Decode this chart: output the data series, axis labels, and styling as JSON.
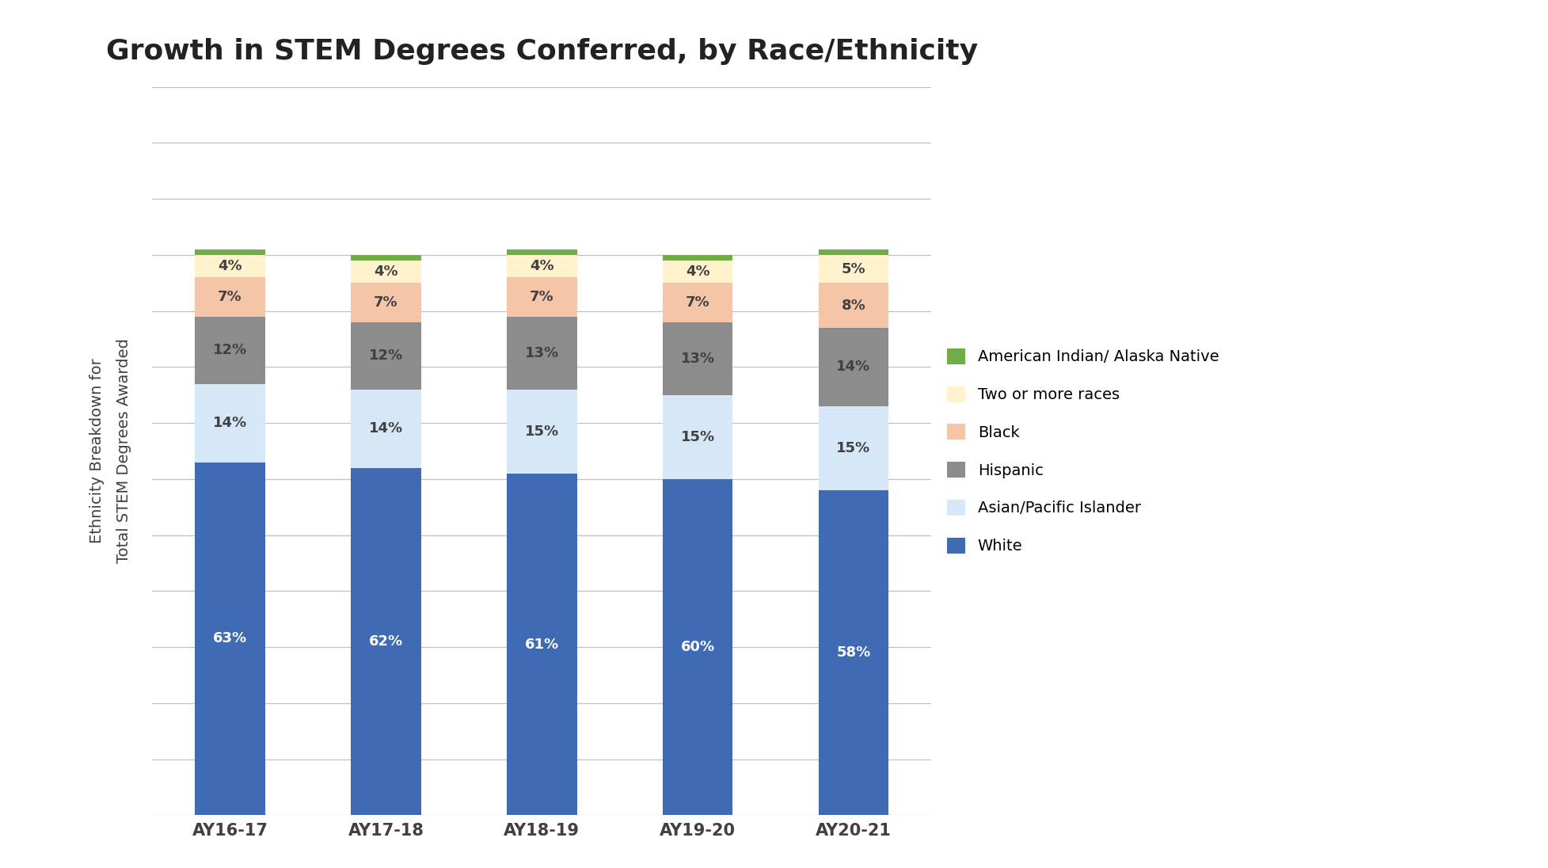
{
  "title": "Growth in STEM Degrees Conferred, by Race/Ethnicity",
  "ylabel": "Ethnicity Breakdown for\nTotal STEM Degrees Awarded",
  "categories": [
    "AY16-17",
    "AY17-18",
    "AY18-19",
    "AY19-20",
    "AY20-21"
  ],
  "series": [
    {
      "label": "White",
      "values": [
        63,
        62,
        61,
        60,
        58
      ],
      "color": "#3E6BB4",
      "text_color": "white"
    },
    {
      "label": "Asian/Pacific Islander",
      "values": [
        14,
        14,
        15,
        15,
        15
      ],
      "color": "#D6E8F7",
      "text_color": "#404040"
    },
    {
      "label": "Hispanic",
      "values": [
        12,
        12,
        13,
        13,
        14
      ],
      "color": "#8C8C8C",
      "text_color": "#404040"
    },
    {
      "label": "Black",
      "values": [
        7,
        7,
        7,
        7,
        8
      ],
      "color": "#F5C5A8",
      "text_color": "#404040"
    },
    {
      "label": "Two or more races",
      "values": [
        4,
        4,
        4,
        4,
        5
      ],
      "color": "#FFF2CC",
      "text_color": "#404040"
    },
    {
      "label": "American Indian/ Alaska Native",
      "values": [
        1,
        1,
        1,
        1,
        1
      ],
      "color": "#70AD47",
      "text_color": "#404040"
    }
  ],
  "ylim": [
    0,
    130
  ],
  "yticks": [
    0,
    10,
    20,
    30,
    40,
    50,
    60,
    70,
    80,
    90,
    100,
    110,
    120,
    130
  ],
  "bar_width": 0.45,
  "title_fontsize": 26,
  "label_fontsize": 14,
  "bar_label_fontsize": 13,
  "tick_fontsize": 15,
  "legend_fontsize": 14,
  "background_color": "#FFFFFF",
  "grid_color": "#C0C0C0"
}
